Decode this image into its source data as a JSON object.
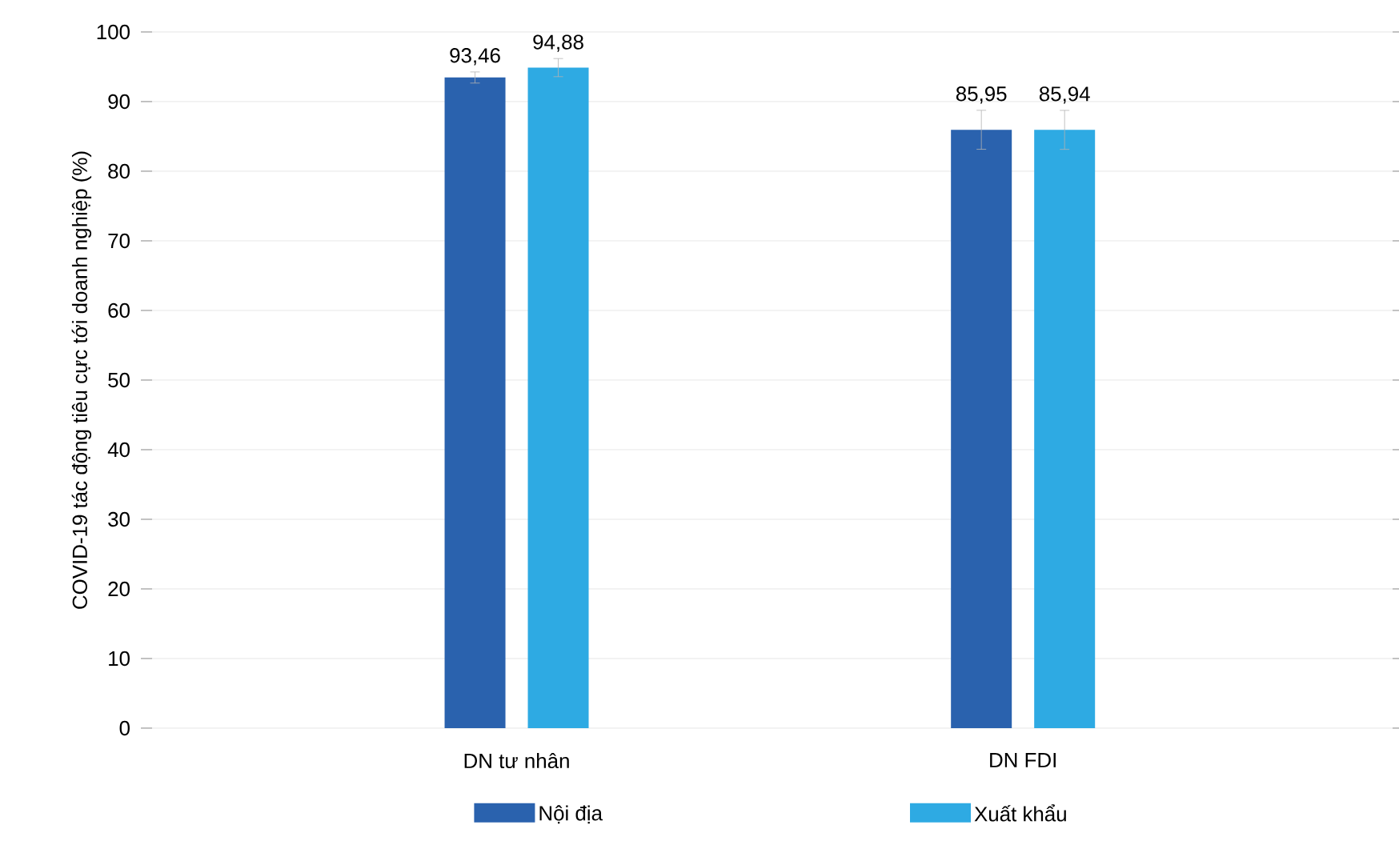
{
  "chart_data": {
    "type": "bar",
    "ylabel": "COVID-19 tác động tiêu cực tới doanh nghiệp (%)",
    "categories": [
      "DN tư nhân",
      "DN FDI"
    ],
    "series": [
      {
        "name": "Nội địa",
        "color": "#2a62ae",
        "values": [
          93.46,
          85.95
        ],
        "errors": [
          0.8,
          2.8
        ],
        "value_labels": [
          "93,46",
          "85,95"
        ]
      },
      {
        "name": "Xuất khẩu",
        "color": "#2eaae3",
        "values": [
          94.88,
          85.94
        ],
        "errors": [
          1.3,
          2.8
        ],
        "value_labels": [
          "94,88",
          "85,94"
        ]
      }
    ],
    "ylim": [
      0,
      100
    ],
    "yticks": [
      0,
      10,
      20,
      30,
      40,
      50,
      60,
      70,
      80,
      90,
      100
    ],
    "grid": "y",
    "legend": "bottom"
  }
}
